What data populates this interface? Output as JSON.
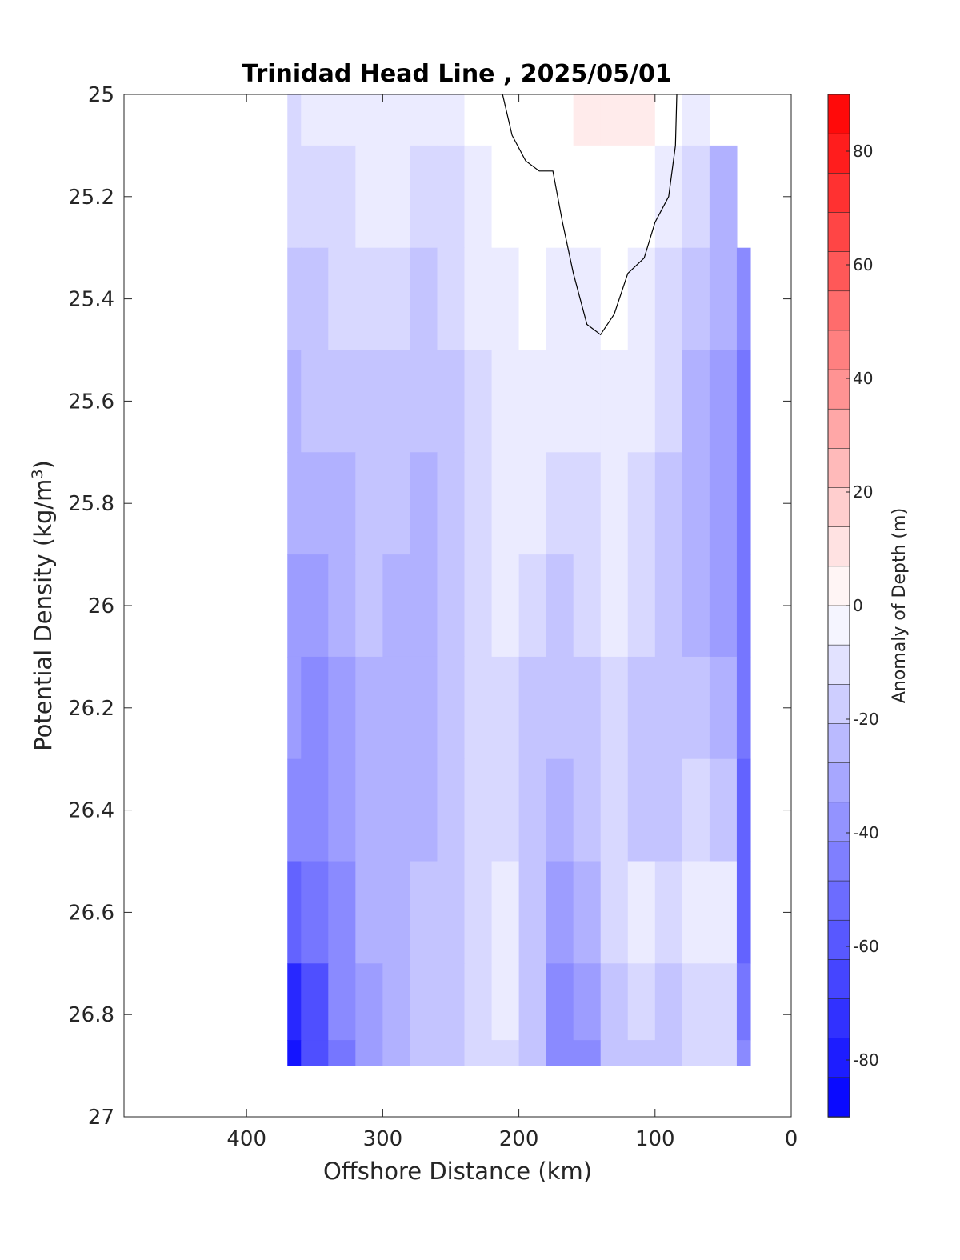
{
  "chart_data": {
    "type": "heatmap",
    "title": "Trinidad Head Line , 2025/05/01",
    "xlabel": "Offshore Distance (km)",
    "ylabel_main": "Potential Density (kg/m",
    "ylabel_sup": "3",
    "ylabel_close": ")",
    "colorbar_label": "Anomaly of Depth (m)",
    "x_reversed": true,
    "xlim": [
      0,
      490
    ],
    "ylim": [
      25,
      27
    ],
    "y_reversed": true,
    "x_ticks": [
      "400",
      "300",
      "200",
      "100",
      "0"
    ],
    "x_tick_values": [
      400,
      300,
      200,
      100,
      0
    ],
    "y_ticks": [
      "25",
      "25.2",
      "25.4",
      "25.6",
      "25.8",
      "26",
      "26.2",
      "26.4",
      "26.6",
      "26.8",
      "27"
    ],
    "y_tick_values": [
      25,
      25.2,
      25.4,
      25.6,
      25.8,
      26,
      26.2,
      26.4,
      26.6,
      26.8,
      27
    ],
    "colorbar_ticks": [
      "80",
      "60",
      "40",
      "20",
      "0",
      "-20",
      "-40",
      "-60",
      "-80"
    ],
    "colorbar_tick_values": [
      80,
      60,
      40,
      20,
      0,
      -20,
      -40,
      -60,
      -80
    ],
    "clim": [
      -90,
      90
    ],
    "colormap": "blue-white-red",
    "color_low": "#0000ff",
    "color_mid": "#ffffff",
    "color_high": "#ff0000",
    "x": [
      370,
      350,
      330,
      310,
      290,
      270,
      250,
      230,
      210,
      190,
      170,
      150,
      130,
      110,
      90,
      70,
      50,
      30
    ],
    "y": [
      25.0,
      25.2,
      25.4,
      25.6,
      25.8,
      26.0,
      26.2,
      26.4,
      26.6,
      26.8,
      26.9
    ],
    "z": [
      [
        -12,
        -10,
        -8,
        -4,
        -5,
        -10,
        -8,
        -3,
        0,
        2,
        3,
        5,
        6,
        4,
        -2,
        -10,
        null,
        null
      ],
      [
        -15,
        -14,
        -12,
        -8,
        -10,
        -14,
        -12,
        -7,
        -2,
        0,
        -1,
        0,
        1,
        -2,
        -8,
        -15,
        -25,
        null
      ],
      [
        -20,
        -18,
        -16,
        -14,
        -16,
        -20,
        -16,
        -10,
        -5,
        -3,
        -4,
        -6,
        -2,
        -6,
        -12,
        -20,
        -30,
        -40
      ],
      [
        -25,
        -24,
        -22,
        -18,
        -20,
        -24,
        -18,
        -12,
        -8,
        -5,
        -7,
        -10,
        -6,
        -10,
        -16,
        -25,
        -32,
        -45
      ],
      [
        -30,
        -28,
        -25,
        -20,
        -22,
        -26,
        -20,
        -14,
        -10,
        -8,
        -12,
        -14,
        -10,
        -14,
        -20,
        -28,
        -34,
        -48
      ],
      [
        -34,
        -32,
        -28,
        -24,
        -26,
        -30,
        -22,
        -14,
        -10,
        -14,
        -20,
        -16,
        -6,
        -12,
        -22,
        -28,
        -32,
        -48
      ],
      [
        -36,
        -38,
        -32,
        -26,
        -28,
        -30,
        -24,
        -14,
        -12,
        -18,
        -24,
        -22,
        -14,
        -20,
        -20,
        -22,
        -28,
        -50
      ],
      [
        -40,
        -38,
        -34,
        -28,
        -30,
        -28,
        -22,
        -12,
        -14,
        -22,
        -26,
        -20,
        -14,
        -18,
        -20,
        -16,
        -20,
        -55
      ],
      [
        -55,
        -48,
        -38,
        -30,
        -26,
        -24,
        -18,
        -12,
        -8,
        -20,
        -34,
        -28,
        -12,
        -10,
        -14,
        -8,
        -10,
        -58
      ],
      [
        -75,
        -60,
        -44,
        -34,
        -28,
        -24,
        -20,
        -14,
        -10,
        -18,
        -40,
        -36,
        -18,
        -14,
        -20,
        -12,
        -14,
        -45
      ],
      [
        -85,
        -65,
        -46,
        -36,
        -28,
        -24,
        -22,
        -14,
        -12,
        -18,
        -42,
        -38,
        -22,
        -18,
        -24,
        -14,
        -16,
        -40
      ]
    ],
    "zero_contour": [
      [
        212,
        25.0
      ],
      [
        205,
        25.08
      ],
      [
        195,
        25.13
      ],
      [
        185,
        25.15
      ],
      [
        175,
        25.15
      ],
      [
        168,
        25.25
      ],
      [
        160,
        25.35
      ],
      [
        150,
        25.45
      ],
      [
        140,
        25.47
      ],
      [
        130,
        25.43
      ],
      [
        120,
        25.35
      ],
      [
        108,
        25.32
      ],
      [
        100,
        25.25
      ],
      [
        90,
        25.2
      ],
      [
        85,
        25.1
      ],
      [
        84,
        25.0
      ]
    ]
  }
}
